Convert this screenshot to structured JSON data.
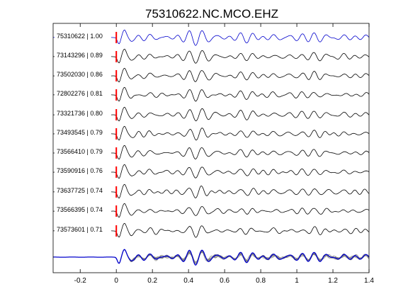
{
  "chart_data": {
    "type": "line",
    "title": "75310622.NC.MCO.EHZ",
    "xlabel": "",
    "ylabel": "",
    "xlim": [
      -0.35,
      1.4
    ],
    "xticks": [
      -0.2,
      0,
      0.2,
      0.4,
      0.6,
      0.8,
      1,
      1.2,
      1.4
    ],
    "xtick_labels": [
      "-0.2",
      "0",
      "0.2",
      "0.4",
      "0.6",
      "0.8",
      "1",
      "1.2",
      "1.4"
    ],
    "grid": false,
    "pick_marker_time": 0,
    "colors": {
      "reference_trace": "#0000cc",
      "correlated_trace": "#000000",
      "pick_marker": "#ff0000",
      "overlay_trace": "#808080"
    },
    "traces": [
      {
        "label": "75310622 | 1.00",
        "event": "75310622",
        "correlation": 1.0,
        "reference": true
      },
      {
        "label": "73143296 | 0.89",
        "event": "73143296",
        "correlation": 0.89
      },
      {
        "label": "73502030 | 0.86",
        "event": "73502030",
        "correlation": 0.86
      },
      {
        "label": "72802276 | 0.81",
        "event": "72802276",
        "correlation": 0.81
      },
      {
        "label": "73321736 | 0.80",
        "event": "73321736",
        "correlation": 0.8
      },
      {
        "label": "73493545 | 0.79",
        "event": "73493545",
        "correlation": 0.79
      },
      {
        "label": "73566410 | 0.79",
        "event": "73566410",
        "correlation": 0.79
      },
      {
        "label": "73590916 | 0.76",
        "event": "73590916",
        "correlation": 0.76
      },
      {
        "label": "73637725 | 0.74",
        "event": "73637725",
        "correlation": 0.74
      },
      {
        "label": "73566395 | 0.74",
        "event": "73566395",
        "correlation": 0.74
      },
      {
        "label": "73573601 | 0.71",
        "event": "73573601",
        "correlation": 0.71
      }
    ],
    "overlay": {
      "description": "stack",
      "reference_highlighted": true
    }
  }
}
